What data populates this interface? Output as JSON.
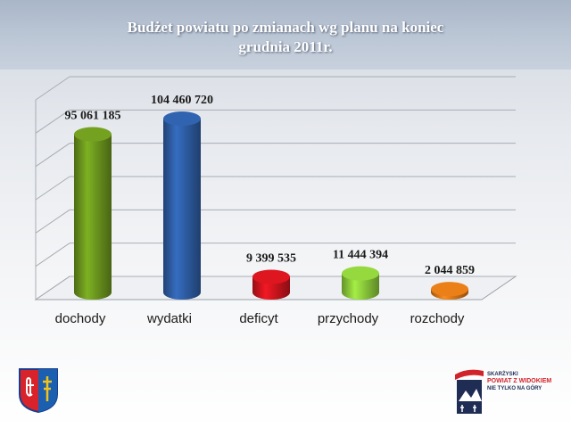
{
  "header": {
    "title_line1": "Budżet powiatu po zmianach wg planu na koniec",
    "title_line2": "grudnia 2011r."
  },
  "chart_data": {
    "type": "bar",
    "categories": [
      "dochody",
      "wydatki",
      "deficyt",
      "przychody",
      "rozchody"
    ],
    "values": [
      95061185,
      104460720,
      9399535,
      11444394,
      2044859
    ],
    "value_labels": [
      "95 061 185",
      "104 460 720",
      "9 399 535",
      "11 444 394",
      "2 044 859"
    ],
    "colors": [
      "#6e9a1e",
      "#2f5fa8",
      "#d3151e",
      "#8fcf3c",
      "#e07a18"
    ],
    "ylim": [
      0,
      120000000
    ],
    "grid": true,
    "xlabel": "",
    "ylabel": ""
  },
  "logos": {
    "left_name": "coat-of-arms",
    "right_line1": "SKARŻYSKI",
    "right_line2": "POWIAT Z WIDOKIEM",
    "right_line3": "NIE TYLKO NA GÓRY"
  }
}
